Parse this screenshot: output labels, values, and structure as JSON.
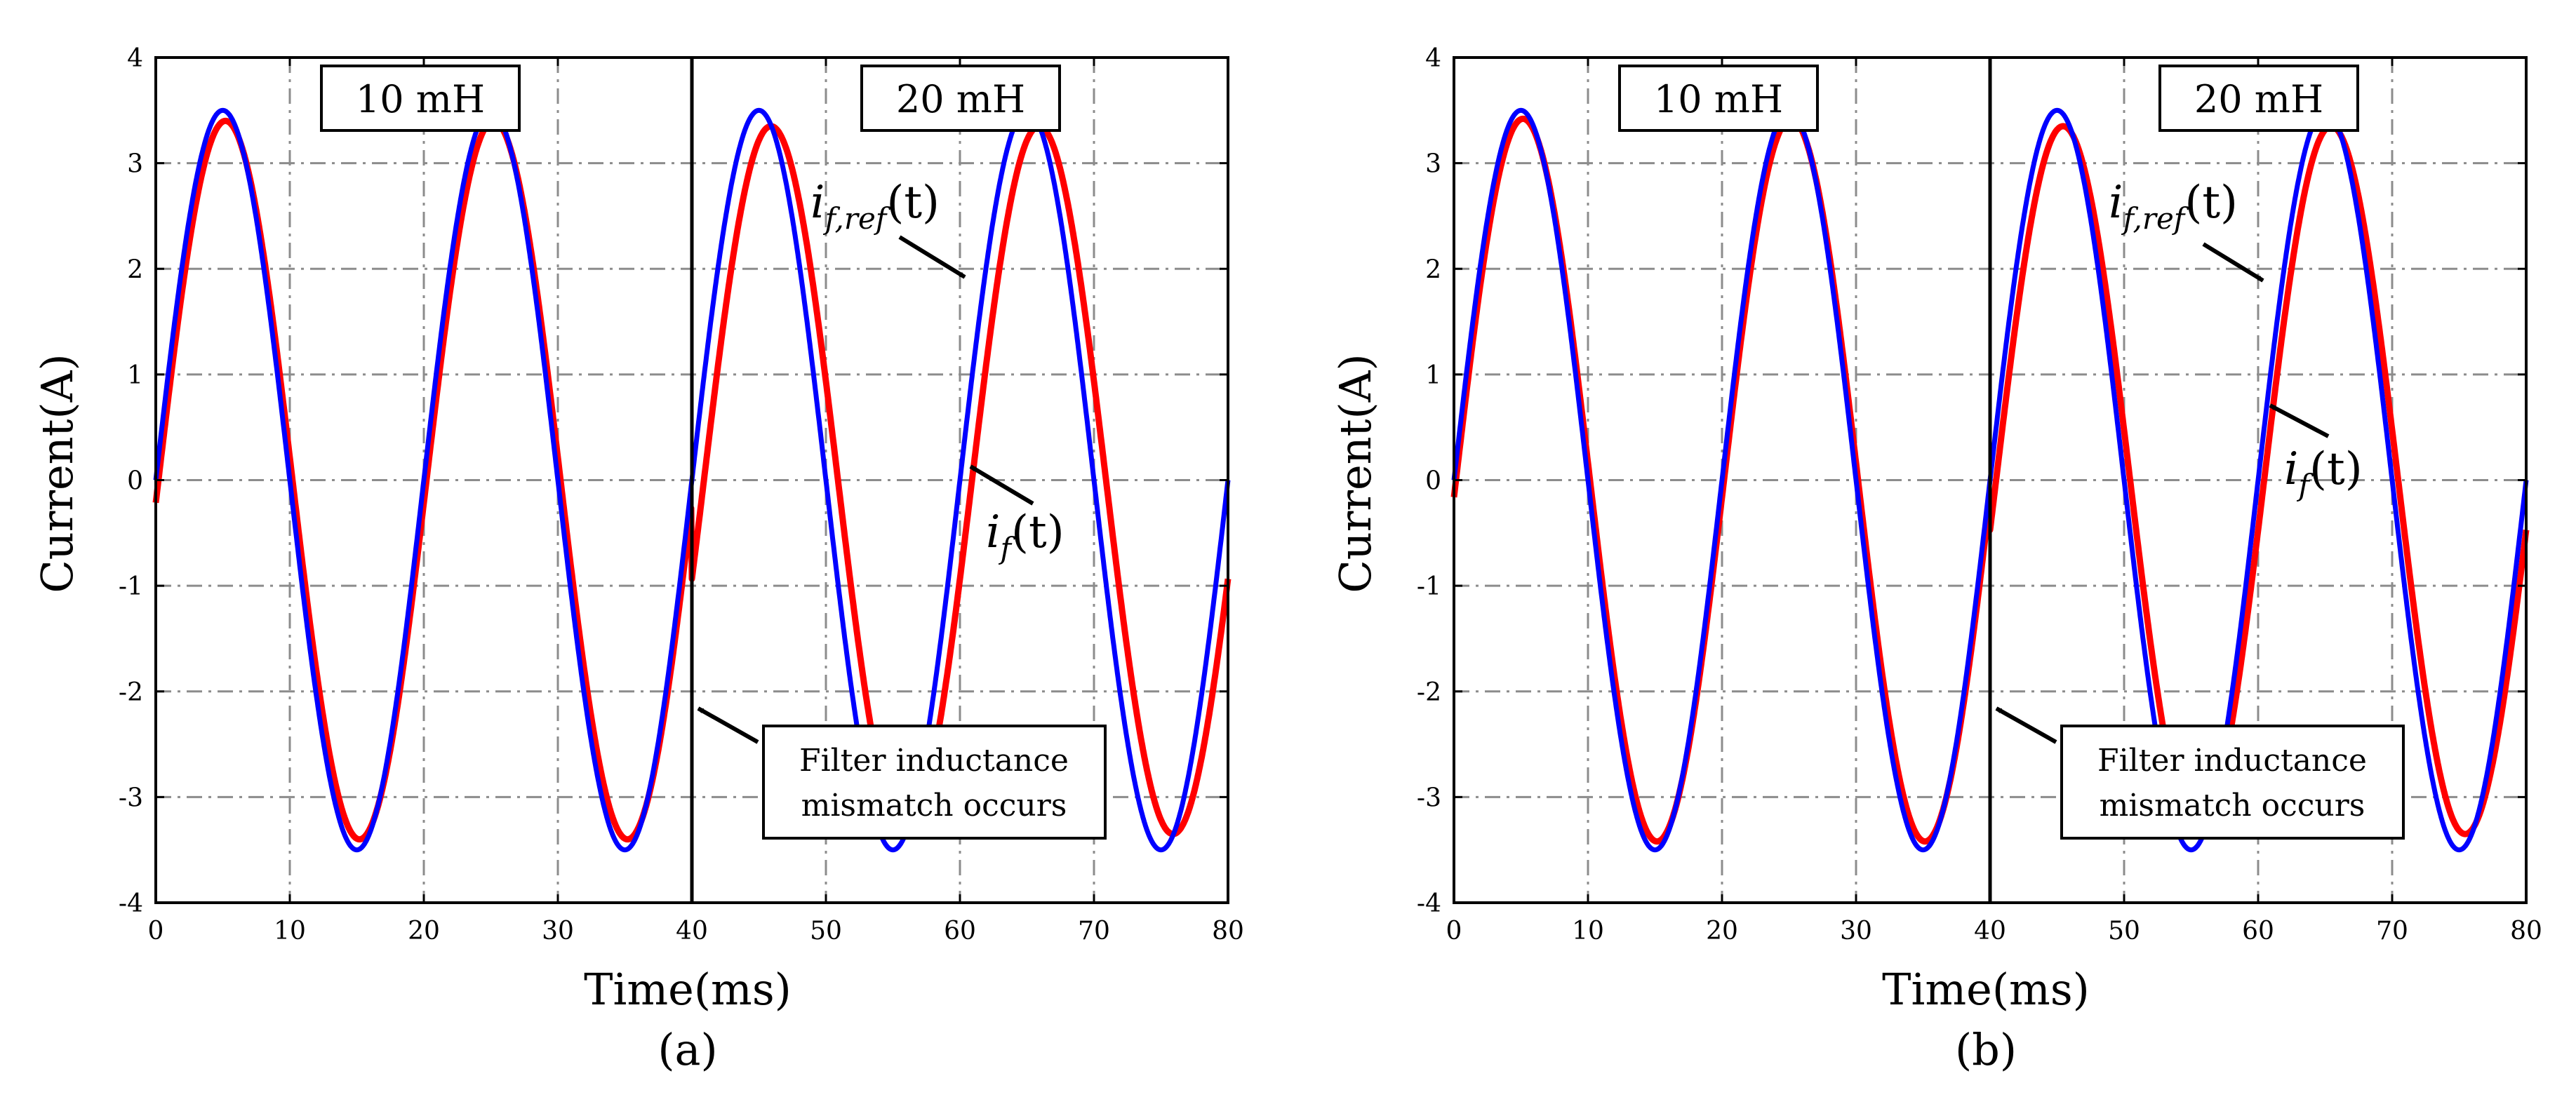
{
  "colors": {
    "reference": "#0000ff",
    "measured": "#ff0000",
    "grid": "#8c8c8c",
    "axis": "#000000"
  },
  "chart_data": [
    {
      "type": "line",
      "panel_label": "(a)",
      "xlabel": "Time(ms)",
      "ylabel": "Current(A)",
      "xlim": [
        0,
        80
      ],
      "ylim": [
        -4,
        4
      ],
      "xticks": [
        0,
        10,
        20,
        30,
        40,
        50,
        60,
        70,
        80
      ],
      "yticks": [
        -4,
        -3,
        -2,
        -1,
        0,
        1,
        2,
        3,
        4
      ],
      "grid": true,
      "event_time_ms": 40,
      "regions": [
        {
          "label": "10 mH",
          "from": 0,
          "to": 40
        },
        {
          "label": "20 mH",
          "from": 40,
          "to": 80
        }
      ],
      "series": [
        {
          "name": "i_f,ref(t)",
          "color": "blue",
          "frequency_hz": 50,
          "segments": [
            {
              "from": 0,
              "to": 40,
              "amplitude": 3.5,
              "phase_shift_ms": 0
            },
            {
              "from": 40,
              "to": 80,
              "amplitude": 3.5,
              "phase_shift_ms": 0
            }
          ]
        },
        {
          "name": "i_f(t)",
          "color": "red",
          "frequency_hz": 50,
          "segments": [
            {
              "from": 0,
              "to": 40,
              "amplitude": 3.4,
              "phase_shift_ms": 0.2
            },
            {
              "from": 40,
              "to": 80,
              "amplitude": 3.35,
              "phase_shift_ms": 0.9
            }
          ]
        }
      ],
      "annotations": {
        "event_box": [
          "Filter inductance",
          "mismatch occurs"
        ],
        "ref_label": {
          "base": "i",
          "subscript": "f,ref",
          "suffix": "(t)"
        },
        "meas_label": {
          "base": "i",
          "subscript": "f",
          "suffix": "(t)"
        }
      }
    },
    {
      "type": "line",
      "panel_label": "(b)",
      "xlabel": "Time(ms)",
      "ylabel": "Current(A)",
      "xlim": [
        0,
        80
      ],
      "ylim": [
        -4,
        4
      ],
      "xticks": [
        0,
        10,
        20,
        30,
        40,
        50,
        60,
        70,
        80
      ],
      "yticks": [
        -4,
        -3,
        -2,
        -1,
        0,
        1,
        2,
        3,
        4
      ],
      "grid": true,
      "event_time_ms": 40,
      "regions": [
        {
          "label": "10 mH",
          "from": 0,
          "to": 40
        },
        {
          "label": "20 mH",
          "from": 40,
          "to": 80
        }
      ],
      "series": [
        {
          "name": "i_f,ref(t)",
          "color": "blue",
          "frequency_hz": 50,
          "segments": [
            {
              "from": 0,
              "to": 40,
              "amplitude": 3.5,
              "phase_shift_ms": 0
            },
            {
              "from": 40,
              "to": 80,
              "amplitude": 3.5,
              "phase_shift_ms": 0
            }
          ]
        },
        {
          "name": "i_f(t)",
          "color": "red",
          "frequency_hz": 50,
          "segments": [
            {
              "from": 0,
              "to": 40,
              "amplitude": 3.42,
              "phase_shift_ms": 0.15
            },
            {
              "from": 40,
              "to": 80,
              "amplitude": 3.35,
              "phase_shift_ms": 0.45
            }
          ]
        }
      ],
      "annotations": {
        "event_box": [
          "Filter inductance",
          "mismatch occurs"
        ],
        "ref_label": {
          "base": "i",
          "subscript": "f,ref",
          "suffix": "(t)"
        },
        "meas_label": {
          "base": "i",
          "subscript": "f",
          "suffix": "(t)"
        }
      }
    }
  ]
}
